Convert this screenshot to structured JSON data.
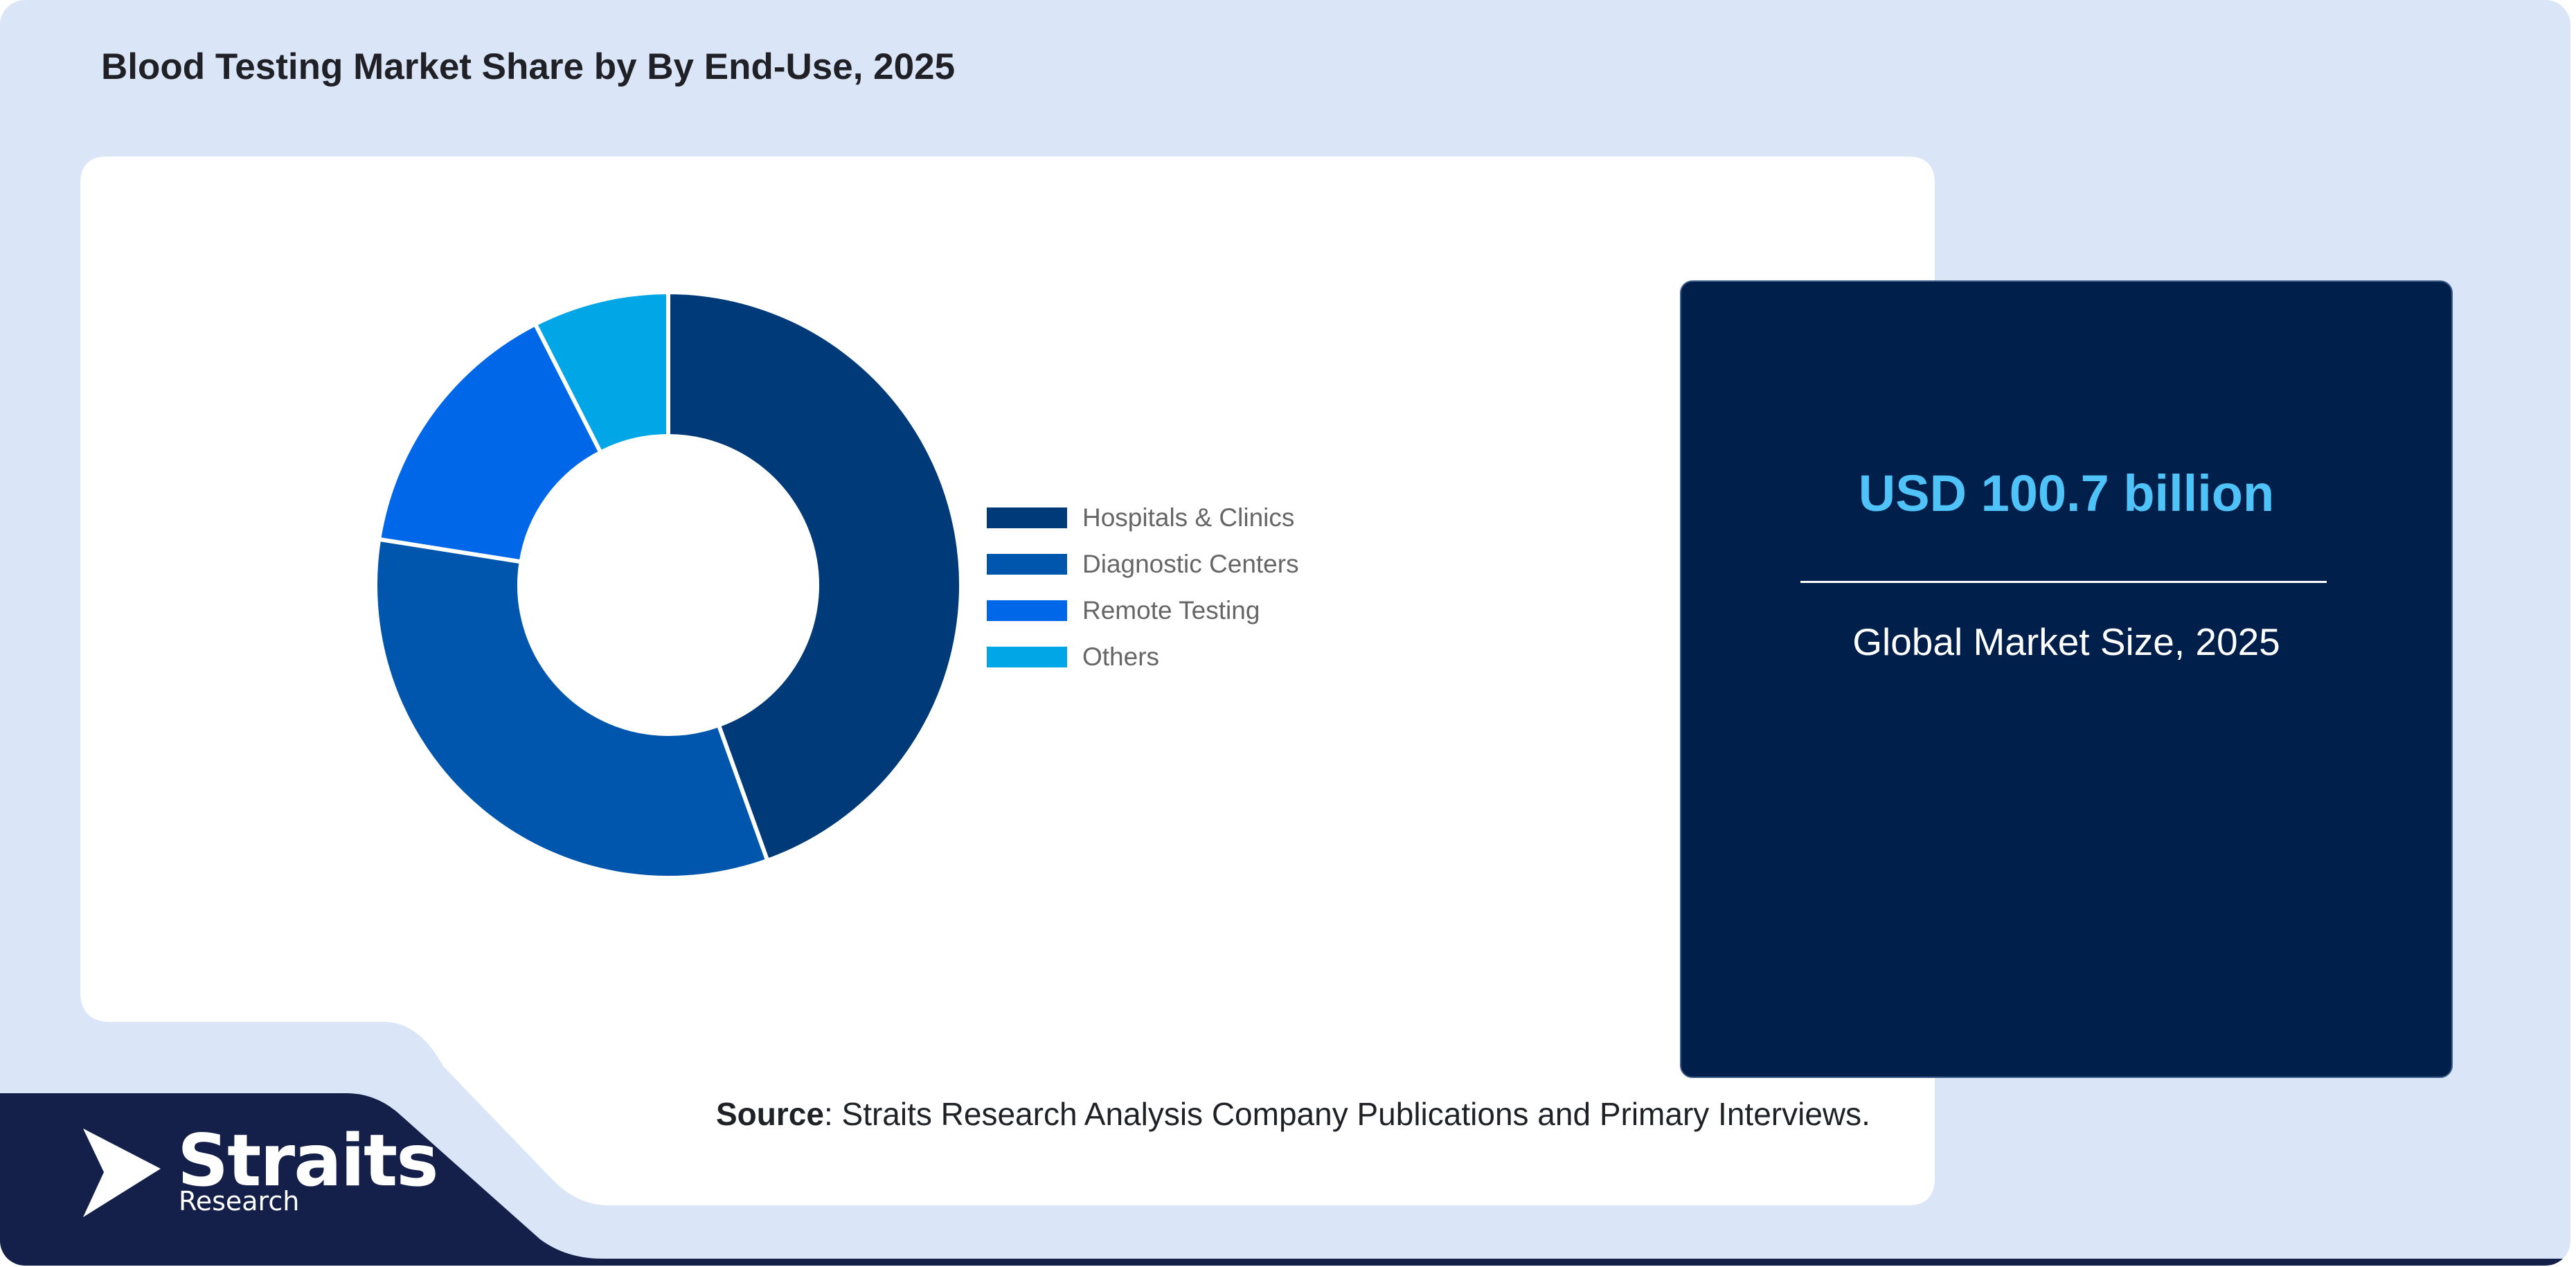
{
  "title": "Blood Testing Market Share by By End-Use, 2025",
  "stat_card": {
    "value": "USD 100.7 billion",
    "label": "Global Market Size, 2025"
  },
  "source": {
    "prefix": "Source",
    "text": ": Straits Research Analysis Company Publications and Primary Interviews."
  },
  "logo": {
    "name": "Straits",
    "sub": "Research"
  },
  "colors": {
    "background": "#dae6f8",
    "panel": "#ffffff",
    "card": "#001f4a",
    "accent": "#4fc3f7",
    "logo_band": "#14204a"
  },
  "chart_data": {
    "type": "pie",
    "variant": "donut",
    "title": "",
    "legend_position": "right",
    "categories": [
      "Hospitals & Clinics",
      "Diagnostic Centers",
      "Remote Testing",
      "Others"
    ],
    "values": [
      44.5,
      33.0,
      15.0,
      7.5
    ],
    "unit": "%",
    "colors": [
      "#003a78",
      "#0056ac",
      "#0068e8",
      "#00a6e5"
    ]
  }
}
